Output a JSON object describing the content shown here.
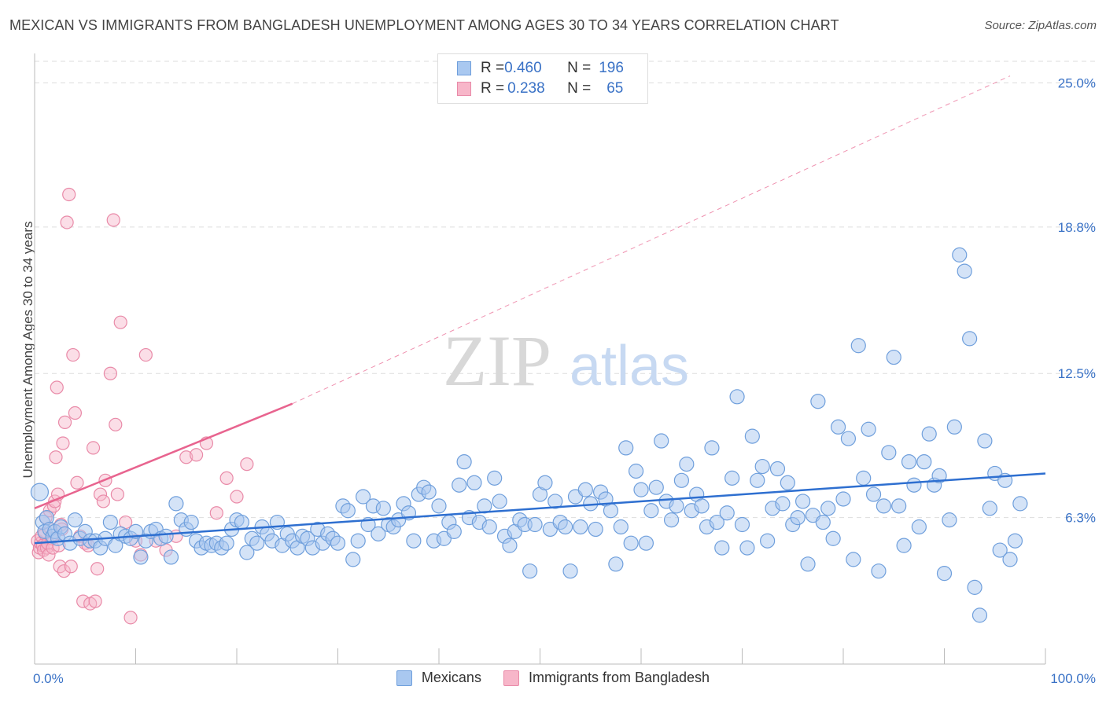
{
  "header": {
    "title": "MEXICAN VS IMMIGRANTS FROM BANGLADESH UNEMPLOYMENT AMONG AGES 30 TO 34 YEARS CORRELATION CHART",
    "source": "Source: ZipAtlas.com"
  },
  "watermark": {
    "zip": "ZIP",
    "atlas": "atlas"
  },
  "legend": {
    "rows": [
      {
        "r_label": "R = ",
        "r_value": "0.460",
        "n_label": "N = ",
        "n_value": "196",
        "color": "#a9c8f0"
      },
      {
        "r_label": "R = ",
        "r_value": "0.238",
        "n_label": "N = ",
        "n_value": "65",
        "color": "#f7b6c9"
      }
    ]
  },
  "colors": {
    "blue_fill": "#a9c8f0",
    "blue_stroke": "#6f9fdc",
    "blue_line": "#2e6fd0",
    "pink_fill": "#f7b6c9",
    "pink_stroke": "#e98aa8",
    "pink_line": "#e8648f",
    "tick_text": "#3a72c6",
    "grid": "#dddddd"
  },
  "chart_data": {
    "type": "scatter",
    "title": "MEXICAN VS IMMIGRANTS FROM BANGLADESH UNEMPLOYMENT AMONG AGES 30 TO 34 YEARS CORRELATION CHART",
    "xlabel": "",
    "ylabel": "Unemployment Among Ages 30 to 34 years",
    "xlim": [
      0,
      100
    ],
    "ylim": [
      0,
      26.2
    ],
    "x_tick_labels": [
      "0.0%",
      "100.0%"
    ],
    "y_ticks": [
      6.3,
      12.5,
      18.8,
      25.0
    ],
    "y_tick_labels": [
      "6.3%",
      "12.5%",
      "18.8%",
      "25.0%"
    ],
    "grid": "horizontal dashed",
    "legend_position": "bottom",
    "series": [
      {
        "name": "Mexicans",
        "R": 0.46,
        "N": 196,
        "trend": {
          "x": [
            0,
            100
          ],
          "y": [
            5.2,
            8.2
          ],
          "style": "solid"
        },
        "points": [
          [
            0.5,
            7.4
          ],
          [
            0.8,
            6.1
          ],
          [
            1,
            5.7
          ],
          [
            1.2,
            6.3
          ],
          [
            1.5,
            5.8
          ],
          [
            1.8,
            5.5
          ],
          [
            2,
            5.7
          ],
          [
            2.3,
            5.4
          ],
          [
            2.6,
            5.9
          ],
          [
            3,
            5.6
          ],
          [
            3.5,
            5.2
          ],
          [
            4,
            6.2
          ],
          [
            4.5,
            5.4
          ],
          [
            5,
            5.7
          ],
          [
            5.5,
            5.3
          ],
          [
            6,
            5.3
          ],
          [
            6.5,
            5.0
          ],
          [
            7,
            5.4
          ],
          [
            7.5,
            6.1
          ],
          [
            8,
            5.1
          ],
          [
            8.5,
            5.6
          ],
          [
            9,
            5.5
          ],
          [
            9.5,
            5.4
          ],
          [
            10,
            5.7
          ],
          [
            10.5,
            4.6
          ],
          [
            11,
            5.3
          ],
          [
            11.5,
            5.7
          ],
          [
            12,
            5.8
          ],
          [
            12.5,
            5.4
          ],
          [
            13,
            5.5
          ],
          [
            13.5,
            4.6
          ],
          [
            14,
            6.9
          ],
          [
            14.5,
            6.2
          ],
          [
            15,
            5.8
          ],
          [
            15.5,
            6.1
          ],
          [
            16,
            5.3
          ],
          [
            16.5,
            5.0
          ],
          [
            17,
            5.2
          ],
          [
            17.5,
            5.1
          ],
          [
            18,
            5.2
          ],
          [
            18.5,
            5.0
          ],
          [
            19,
            5.2
          ],
          [
            19.5,
            5.8
          ],
          [
            20,
            6.2
          ],
          [
            20.5,
            6.1
          ],
          [
            21,
            4.8
          ],
          [
            21.5,
            5.4
          ],
          [
            22,
            5.2
          ],
          [
            22.5,
            5.9
          ],
          [
            23,
            5.6
          ],
          [
            23.5,
            5.3
          ],
          [
            24,
            6.1
          ],
          [
            24.5,
            5.1
          ],
          [
            25,
            5.6
          ],
          [
            25.5,
            5.3
          ],
          [
            26,
            5.0
          ],
          [
            26.5,
            5.5
          ],
          [
            27,
            5.4
          ],
          [
            27.5,
            5.0
          ],
          [
            28,
            5.8
          ],
          [
            28.5,
            5.2
          ],
          [
            29,
            5.6
          ],
          [
            29.5,
            5.4
          ],
          [
            30,
            5.2
          ],
          [
            30.5,
            6.8
          ],
          [
            31,
            6.6
          ],
          [
            31.5,
            4.5
          ],
          [
            32,
            5.3
          ],
          [
            32.5,
            7.2
          ],
          [
            33,
            6.0
          ],
          [
            33.5,
            6.8
          ],
          [
            34,
            5.6
          ],
          [
            34.5,
            6.7
          ],
          [
            35,
            6.0
          ],
          [
            35.5,
            5.9
          ],
          [
            36,
            6.2
          ],
          [
            36.5,
            6.9
          ],
          [
            37,
            6.5
          ],
          [
            37.5,
            5.3
          ],
          [
            38,
            7.3
          ],
          [
            38.5,
            7.6
          ],
          [
            39,
            7.4
          ],
          [
            39.5,
            5.3
          ],
          [
            40,
            6.8
          ],
          [
            40.5,
            5.4
          ],
          [
            41,
            6.1
          ],
          [
            41.5,
            5.7
          ],
          [
            42,
            7.7
          ],
          [
            42.5,
            8.7
          ],
          [
            43,
            6.3
          ],
          [
            43.5,
            7.8
          ],
          [
            44,
            6.1
          ],
          [
            44.5,
            6.8
          ],
          [
            45,
            5.9
          ],
          [
            45.5,
            8.0
          ],
          [
            46,
            7.0
          ],
          [
            46.5,
            5.5
          ],
          [
            47,
            5.1
          ],
          [
            47.5,
            5.7
          ],
          [
            48,
            6.2
          ],
          [
            48.5,
            6.0
          ],
          [
            49,
            4.0
          ],
          [
            49.5,
            6.0
          ],
          [
            50,
            7.3
          ],
          [
            50.5,
            7.8
          ],
          [
            51,
            5.8
          ],
          [
            51.5,
            7.0
          ],
          [
            52,
            6.1
          ],
          [
            52.5,
            5.9
          ],
          [
            53,
            4.0
          ],
          [
            53.5,
            7.2
          ],
          [
            54,
            5.9
          ],
          [
            54.5,
            7.5
          ],
          [
            55,
            6.9
          ],
          [
            55.5,
            5.8
          ],
          [
            56,
            7.4
          ],
          [
            56.5,
            7.1
          ],
          [
            57,
            6.6
          ],
          [
            57.5,
            4.3
          ],
          [
            58,
            5.9
          ],
          [
            58.5,
            9.3
          ],
          [
            59,
            5.2
          ],
          [
            59.5,
            8.3
          ],
          [
            60,
            7.5
          ],
          [
            60.5,
            5.2
          ],
          [
            61,
            6.6
          ],
          [
            61.5,
            7.6
          ],
          [
            62,
            9.6
          ],
          [
            62.5,
            7.0
          ],
          [
            63,
            6.2
          ],
          [
            63.5,
            6.8
          ],
          [
            64,
            7.9
          ],
          [
            64.5,
            8.6
          ],
          [
            65,
            6.6
          ],
          [
            65.5,
            7.3
          ],
          [
            66,
            6.8
          ],
          [
            66.5,
            5.9
          ],
          [
            67,
            9.3
          ],
          [
            67.5,
            6.1
          ],
          [
            68,
            5.0
          ],
          [
            68.5,
            6.5
          ],
          [
            69,
            8.0
          ],
          [
            69.5,
            11.5
          ],
          [
            70,
            6.0
          ],
          [
            70.5,
            5.0
          ],
          [
            71,
            9.8
          ],
          [
            71.5,
            7.9
          ],
          [
            72,
            8.5
          ],
          [
            72.5,
            5.3
          ],
          [
            73,
            6.7
          ],
          [
            73.5,
            8.4
          ],
          [
            74,
            6.9
          ],
          [
            74.5,
            7.8
          ],
          [
            75,
            6.0
          ],
          [
            75.5,
            6.3
          ],
          [
            76,
            7.0
          ],
          [
            76.5,
            4.3
          ],
          [
            77,
            6.4
          ],
          [
            77.5,
            11.3
          ],
          [
            78,
            6.1
          ],
          [
            78.5,
            6.7
          ],
          [
            79,
            5.4
          ],
          [
            79.5,
            10.2
          ],
          [
            80,
            7.1
          ],
          [
            80.5,
            9.7
          ],
          [
            81,
            4.5
          ],
          [
            81.5,
            13.7
          ],
          [
            82,
            8.0
          ],
          [
            82.5,
            10.1
          ],
          [
            83,
            7.3
          ],
          [
            83.5,
            4.0
          ],
          [
            84,
            6.8
          ],
          [
            84.5,
            9.1
          ],
          [
            85,
            13.2
          ],
          [
            85.5,
            6.8
          ],
          [
            86,
            5.1
          ],
          [
            86.5,
            8.7
          ],
          [
            87,
            7.7
          ],
          [
            87.5,
            5.9
          ],
          [
            88,
            8.7
          ],
          [
            88.5,
            9.9
          ],
          [
            89,
            7.7
          ],
          [
            89.5,
            8.1
          ],
          [
            90,
            3.9
          ],
          [
            90.5,
            6.2
          ],
          [
            91,
            10.2
          ],
          [
            91.5,
            17.6
          ],
          [
            92,
            16.9
          ],
          [
            92.5,
            14.0
          ],
          [
            93,
            3.3
          ],
          [
            93.5,
            2.1
          ],
          [
            94,
            9.6
          ],
          [
            94.5,
            6.7
          ],
          [
            95,
            8.2
          ],
          [
            95.5,
            4.9
          ],
          [
            96,
            7.9
          ],
          [
            96.5,
            4.5
          ],
          [
            97,
            5.3
          ],
          [
            97.5,
            6.9
          ]
        ]
      },
      {
        "name": "Immigrants from Bangladesh",
        "R": 0.238,
        "N": 65,
        "trend": {
          "x": [
            0,
            25.5
          ],
          "y": [
            6.7,
            11.2
          ],
          "style": "solid",
          "extended": {
            "x": [
              25.5,
              96.5
            ],
            "y": [
              11.2,
              25.3
            ],
            "style": "dashed"
          }
        },
        "points": [
          [
            0.3,
            5.3
          ],
          [
            0.4,
            4.8
          ],
          [
            0.5,
            5.0
          ],
          [
            0.6,
            5.2
          ],
          [
            0.7,
            5.5
          ],
          [
            0.8,
            5.1
          ],
          [
            0.9,
            4.9
          ],
          [
            1,
            5.6
          ],
          [
            1.1,
            6.3
          ],
          [
            1.2,
            5.0
          ],
          [
            1.3,
            5.2
          ],
          [
            1.4,
            4.7
          ],
          [
            1.5,
            6.6
          ],
          [
            1.6,
            5.8
          ],
          [
            1.7,
            5.4
          ],
          [
            1.8,
            5.0
          ],
          [
            1.9,
            6.8
          ],
          [
            2,
            7.0
          ],
          [
            2.1,
            8.9
          ],
          [
            2.2,
            11.9
          ],
          [
            2.3,
            7.3
          ],
          [
            2.4,
            5.1
          ],
          [
            2.5,
            4.2
          ],
          [
            2.6,
            6.0
          ],
          [
            2.7,
            5.8
          ],
          [
            2.8,
            9.5
          ],
          [
            2.9,
            4.0
          ],
          [
            3,
            10.4
          ],
          [
            3.2,
            19.0
          ],
          [
            3.4,
            20.2
          ],
          [
            3.6,
            4.2
          ],
          [
            3.8,
            13.3
          ],
          [
            4,
            10.8
          ],
          [
            4.2,
            7.8
          ],
          [
            4.5,
            5.5
          ],
          [
            4.8,
            2.7
          ],
          [
            5,
            5.2
          ],
          [
            5.3,
            5.1
          ],
          [
            5.5,
            2.6
          ],
          [
            5.8,
            9.3
          ],
          [
            6,
            2.7
          ],
          [
            6.2,
            4.1
          ],
          [
            6.5,
            7.3
          ],
          [
            6.8,
            7.0
          ],
          [
            7,
            7.9
          ],
          [
            7.5,
            12.5
          ],
          [
            7.8,
            19.1
          ],
          [
            8,
            10.3
          ],
          [
            8.2,
            7.3
          ],
          [
            8.5,
            14.7
          ],
          [
            9,
            6.1
          ],
          [
            9.5,
            2.0
          ],
          [
            10,
            5.3
          ],
          [
            10.5,
            4.7
          ],
          [
            11,
            13.3
          ],
          [
            12,
            5.3
          ],
          [
            13,
            4.9
          ],
          [
            14,
            5.5
          ],
          [
            15,
            8.9
          ],
          [
            16,
            9.0
          ],
          [
            17,
            9.5
          ],
          [
            18,
            6.5
          ],
          [
            19,
            8.0
          ],
          [
            20,
            7.2
          ],
          [
            21,
            8.6
          ]
        ]
      }
    ]
  },
  "bottom_legend": [
    "Mexicans",
    "Immigrants from Bangladesh"
  ]
}
